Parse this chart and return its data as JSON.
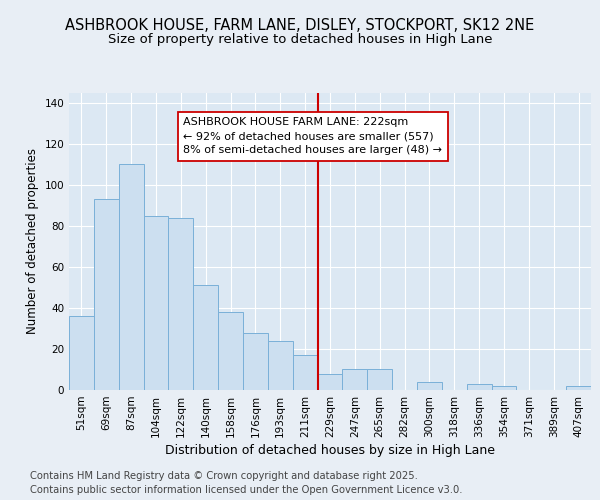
{
  "title": "ASHBROOK HOUSE, FARM LANE, DISLEY, STOCKPORT, SK12 2NE",
  "subtitle": "Size of property relative to detached houses in High Lane",
  "xlabel": "Distribution of detached houses by size in High Lane",
  "ylabel": "Number of detached properties",
  "footer1": "Contains HM Land Registry data © Crown copyright and database right 2025.",
  "footer2": "Contains public sector information licensed under the Open Government Licence v3.0.",
  "categories": [
    "51sqm",
    "69sqm",
    "87sqm",
    "104sqm",
    "122sqm",
    "140sqm",
    "158sqm",
    "176sqm",
    "193sqm",
    "211sqm",
    "229sqm",
    "247sqm",
    "265sqm",
    "282sqm",
    "300sqm",
    "318sqm",
    "336sqm",
    "354sqm",
    "371sqm",
    "389sqm",
    "407sqm"
  ],
  "values": [
    36,
    93,
    110,
    85,
    84,
    51,
    38,
    28,
    24,
    17,
    8,
    10,
    10,
    0,
    4,
    0,
    3,
    2,
    0,
    0,
    2
  ],
  "bar_color": "#ccdff0",
  "bar_edge_color": "#7ab0d8",
  "vline_index": 10,
  "vline_color": "#cc0000",
  "annotation_line1": "ASHBROOK HOUSE FARM LANE: 222sqm",
  "annotation_line2": "← 92% of detached houses are smaller (557)",
  "annotation_line3": "8% of semi-detached houses are larger (48) →",
  "annotation_box_edge": "#cc0000",
  "annotation_bg": "#ffffff",
  "ylim": [
    0,
    145
  ],
  "yticks": [
    0,
    20,
    40,
    60,
    80,
    100,
    120,
    140
  ],
  "background_color": "#e8eef5",
  "plot_bg_color": "#dce8f3",
  "grid_color": "#ffffff",
  "title_fontsize": 10.5,
  "subtitle_fontsize": 9.5,
  "axis_label_fontsize": 9,
  "tick_fontsize": 7.5,
  "ylabel_fontsize": 8.5,
  "footer_fontsize": 7.2,
  "annot_fontsize": 8
}
